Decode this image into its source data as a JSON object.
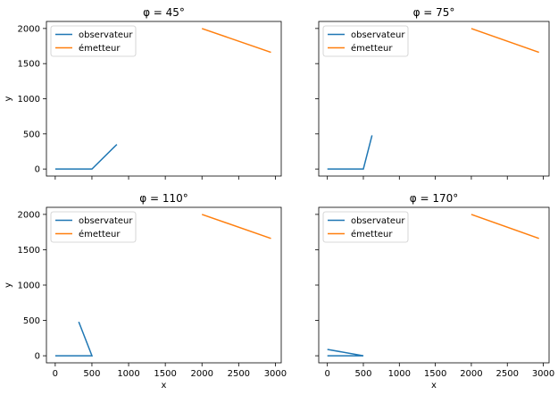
{
  "chart_data": [
    {
      "type": "line",
      "title": "φ = 45°",
      "xlabel": "",
      "ylabel": "y",
      "xlim": [
        -120,
        3080
      ],
      "ylim": [
        -100,
        2100
      ],
      "xticks": [
        0,
        500,
        1000,
        1500,
        2000,
        2500,
        3000
      ],
      "yticks": [
        0,
        500,
        1000,
        1500,
        2000
      ],
      "show_xticklabels": false,
      "show_yticklabels": true,
      "legend": "top-left",
      "series": [
        {
          "name": "observateur",
          "color": "#1f77b4",
          "x": [
            0,
            500,
            840
          ],
          "y": [
            0,
            0,
            350
          ]
        },
        {
          "name": "émetteur",
          "color": "#ff7f0e",
          "x": [
            2000,
            2940
          ],
          "y": [
            2000,
            1660
          ]
        }
      ]
    },
    {
      "type": "line",
      "title": "φ = 75°",
      "xlabel": "",
      "ylabel": "",
      "xlim": [
        -120,
        3080
      ],
      "ylim": [
        -100,
        2100
      ],
      "xticks": [
        0,
        500,
        1000,
        1500,
        2000,
        2500,
        3000
      ],
      "yticks": [
        0,
        500,
        1000,
        1500,
        2000
      ],
      "show_xticklabels": false,
      "show_yticklabels": false,
      "legend": "top-left",
      "series": [
        {
          "name": "observateur",
          "color": "#1f77b4",
          "x": [
            0,
            500,
            620
          ],
          "y": [
            0,
            0,
            480
          ]
        },
        {
          "name": "émetteur",
          "color": "#ff7f0e",
          "x": [
            2000,
            2940
          ],
          "y": [
            2000,
            1660
          ]
        }
      ]
    },
    {
      "type": "line",
      "title": "φ = 110°",
      "xlabel": "x",
      "ylabel": "y",
      "xlim": [
        -120,
        3080
      ],
      "ylim": [
        -100,
        2100
      ],
      "xticks": [
        0,
        500,
        1000,
        1500,
        2000,
        2500,
        3000
      ],
      "yticks": [
        0,
        500,
        1000,
        1500,
        2000
      ],
      "show_xticklabels": true,
      "show_yticklabels": true,
      "legend": "top-left",
      "series": [
        {
          "name": "observateur",
          "color": "#1f77b4",
          "x": [
            0,
            500,
            320
          ],
          "y": [
            0,
            0,
            480
          ]
        },
        {
          "name": "émetteur",
          "color": "#ff7f0e",
          "x": [
            2000,
            2940
          ],
          "y": [
            2000,
            1660
          ]
        }
      ]
    },
    {
      "type": "line",
      "title": "φ = 170°",
      "xlabel": "x",
      "ylabel": "",
      "xlim": [
        -120,
        3080
      ],
      "ylim": [
        -100,
        2100
      ],
      "xticks": [
        0,
        500,
        1000,
        1500,
        2000,
        2500,
        3000
      ],
      "yticks": [
        0,
        500,
        1000,
        1500,
        2000
      ],
      "show_xticklabels": true,
      "show_yticklabels": false,
      "legend": "top-left",
      "series": [
        {
          "name": "observateur",
          "color": "#1f77b4",
          "x": [
            0,
            500,
            0
          ],
          "y": [
            0,
            0,
            90
          ]
        },
        {
          "name": "émetteur",
          "color": "#ff7f0e",
          "x": [
            2000,
            2940
          ],
          "y": [
            2000,
            1660
          ]
        }
      ]
    }
  ]
}
